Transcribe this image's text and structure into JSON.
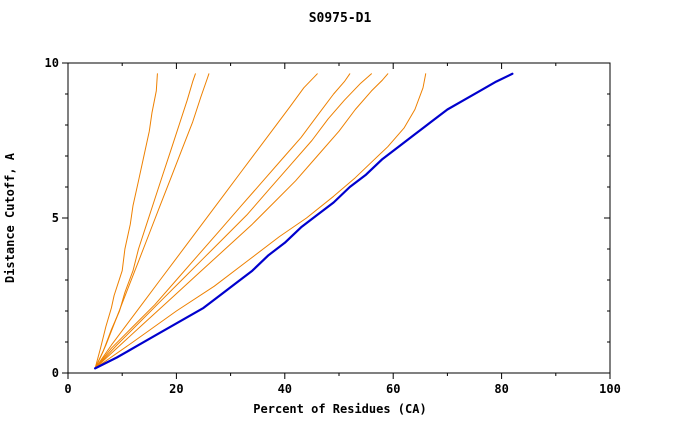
{
  "chart_data": {
    "type": "line",
    "title": "S0975-D1",
    "xlabel": "Percent of Residues (CA)",
    "ylabel": "Distance Cutoff, A",
    "xlim": [
      0,
      100
    ],
    "ylim": [
      0,
      10
    ],
    "x_major_ticks": [
      0,
      20,
      40,
      60,
      80,
      100
    ],
    "x_minor_step": 10,
    "y_major_ticks": [
      0,
      5,
      10
    ],
    "y_minor_step": 1,
    "grid": false,
    "legend": "none",
    "colors": {
      "model_curves": "#EE8000",
      "highlight_curve": "#0000CD",
      "axes": "#000000"
    },
    "series": [
      {
        "color": "#EE8000",
        "width": 1,
        "points": [
          [
            5,
            0.15
          ],
          [
            6,
            0.8
          ],
          [
            7,
            1.5
          ],
          [
            8,
            2.1
          ],
          [
            8.5,
            2.5
          ],
          [
            10,
            3.3
          ],
          [
            10.5,
            4.0
          ],
          [
            11.5,
            4.8
          ],
          [
            12,
            5.4
          ],
          [
            13,
            6.2
          ],
          [
            14,
            7.0
          ],
          [
            15,
            7.8
          ],
          [
            15.5,
            8.4
          ],
          [
            16.3,
            9.1
          ],
          [
            16.5,
            9.65
          ]
        ]
      },
      {
        "color": "#EE8000",
        "width": 1,
        "points": [
          [
            5,
            0.15
          ],
          [
            6.5,
            0.7
          ],
          [
            8,
            1.4
          ],
          [
            9.5,
            2.0
          ],
          [
            10.5,
            2.6
          ],
          [
            12,
            3.3
          ],
          [
            13,
            4.0
          ],
          [
            14.5,
            4.8
          ],
          [
            16,
            5.6
          ],
          [
            17.5,
            6.4
          ],
          [
            19,
            7.2
          ],
          [
            20.5,
            8.0
          ],
          [
            22,
            8.8
          ],
          [
            23,
            9.4
          ],
          [
            23.5,
            9.65
          ]
        ]
      },
      {
        "color": "#EE8000",
        "width": 1,
        "points": [
          [
            5,
            0.15
          ],
          [
            7,
            0.9
          ],
          [
            9,
            1.8
          ],
          [
            11,
            2.7
          ],
          [
            13,
            3.6
          ],
          [
            15,
            4.5
          ],
          [
            17,
            5.4
          ],
          [
            19,
            6.3
          ],
          [
            21,
            7.2
          ],
          [
            23,
            8.1
          ],
          [
            24.5,
            8.9
          ],
          [
            25.7,
            9.5
          ],
          [
            26,
            9.65
          ]
        ]
      },
      {
        "color": "#EE8000",
        "width": 1,
        "points": [
          [
            5,
            0.15
          ],
          [
            8,
            0.9
          ],
          [
            11,
            1.6
          ],
          [
            14,
            2.3
          ],
          [
            17,
            3.0
          ],
          [
            20,
            3.7
          ],
          [
            23,
            4.4
          ],
          [
            26,
            5.1
          ],
          [
            29,
            5.8
          ],
          [
            32,
            6.5
          ],
          [
            35,
            7.2
          ],
          [
            38,
            7.9
          ],
          [
            41,
            8.6
          ],
          [
            43.5,
            9.2
          ],
          [
            46,
            9.65
          ]
        ]
      },
      {
        "color": "#EE8000",
        "width": 1,
        "points": [
          [
            5,
            0.15
          ],
          [
            8,
            0.8
          ],
          [
            12,
            1.5
          ],
          [
            16,
            2.2
          ],
          [
            20,
            3.0
          ],
          [
            24,
            3.8
          ],
          [
            28,
            4.6
          ],
          [
            32,
            5.4
          ],
          [
            36,
            6.2
          ],
          [
            40,
            7.0
          ],
          [
            43,
            7.6
          ],
          [
            46,
            8.3
          ],
          [
            49,
            9.0
          ],
          [
            51,
            9.4
          ],
          [
            52,
            9.65
          ]
        ]
      },
      {
        "color": "#EE8000",
        "width": 1,
        "points": [
          [
            5,
            0.15
          ],
          [
            9,
            0.9
          ],
          [
            13,
            1.6
          ],
          [
            17,
            2.3
          ],
          [
            21,
            3.0
          ],
          [
            25,
            3.7
          ],
          [
            29,
            4.4
          ],
          [
            33,
            5.1
          ],
          [
            37,
            5.9
          ],
          [
            41,
            6.7
          ],
          [
            45,
            7.5
          ],
          [
            48,
            8.2
          ],
          [
            51,
            8.8
          ],
          [
            54,
            9.35
          ],
          [
            56,
            9.65
          ]
        ]
      },
      {
        "color": "#EE8000",
        "width": 1,
        "points": [
          [
            5,
            0.15
          ],
          [
            9,
            0.8
          ],
          [
            14,
            1.6
          ],
          [
            19,
            2.4
          ],
          [
            24,
            3.2
          ],
          [
            29,
            4.0
          ],
          [
            34,
            4.8
          ],
          [
            38,
            5.5
          ],
          [
            42,
            6.2
          ],
          [
            46,
            7.0
          ],
          [
            50,
            7.8
          ],
          [
            53,
            8.5
          ],
          [
            56,
            9.1
          ],
          [
            58,
            9.45
          ],
          [
            59,
            9.65
          ]
        ]
      },
      {
        "color": "#EE8000",
        "width": 1,
        "points": [
          [
            5,
            0.15
          ],
          [
            12,
            1.0
          ],
          [
            20,
            2.0
          ],
          [
            27,
            2.8
          ],
          [
            33,
            3.6
          ],
          [
            39,
            4.4
          ],
          [
            44,
            5.0
          ],
          [
            49,
            5.7
          ],
          [
            53,
            6.3
          ],
          [
            56,
            6.8
          ],
          [
            59,
            7.3
          ],
          [
            62,
            7.9
          ],
          [
            64,
            8.5
          ],
          [
            65.5,
            9.2
          ],
          [
            66,
            9.65
          ]
        ]
      },
      {
        "color": "#0000CD",
        "width": 2.2,
        "points": [
          [
            5,
            0.15
          ],
          [
            9,
            0.5
          ],
          [
            13,
            0.9
          ],
          [
            17,
            1.3
          ],
          [
            21,
            1.7
          ],
          [
            25,
            2.1
          ],
          [
            28,
            2.5
          ],
          [
            31,
            2.9
          ],
          [
            34,
            3.3
          ],
          [
            37,
            3.8
          ],
          [
            40,
            4.2
          ],
          [
            43,
            4.7
          ],
          [
            46,
            5.1
          ],
          [
            49,
            5.5
          ],
          [
            52,
            6.0
          ],
          [
            55,
            6.4
          ],
          [
            58,
            6.9
          ],
          [
            61,
            7.3
          ],
          [
            64,
            7.7
          ],
          [
            67,
            8.1
          ],
          [
            70,
            8.5
          ],
          [
            73,
            8.8
          ],
          [
            76,
            9.1
          ],
          [
            79,
            9.4
          ],
          [
            82,
            9.65
          ]
        ]
      }
    ]
  }
}
